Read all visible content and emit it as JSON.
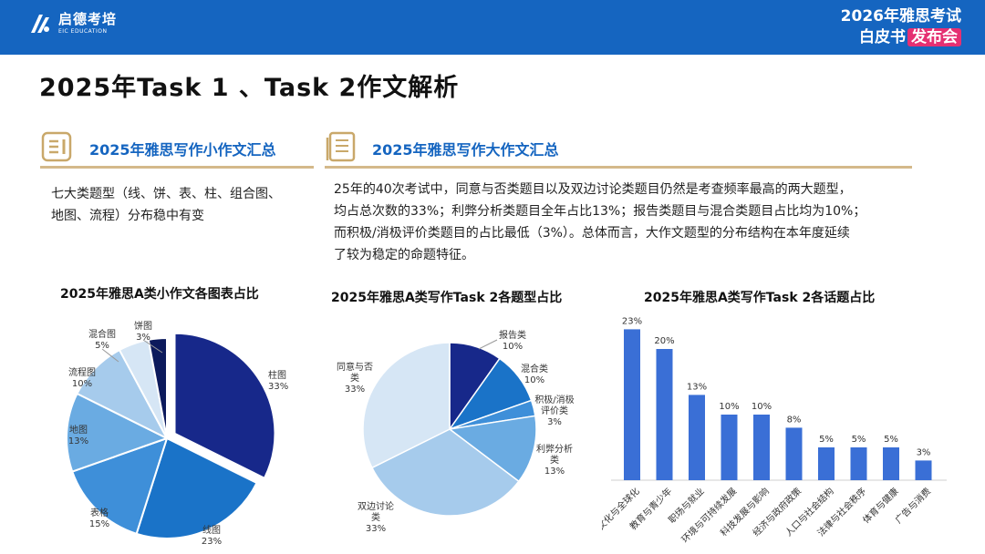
{
  "header": {
    "logo_cn": "启德考培",
    "logo_en": "EIC EDUCATION",
    "brand_line1": "2026年雅思考试",
    "brand_line2a": "白皮书",
    "brand_line2b": "发布会"
  },
  "page_title": "2025年Task 1 、Task 2作文解析",
  "left_section": {
    "title": "2025年雅思写作小作文汇总",
    "body_line1": "七大类题型（线、饼、表、柱、组合图、",
    "body_line2": "地图、流程）分布稳中有变"
  },
  "right_section": {
    "title": "2025年雅思写作大作文汇总",
    "body_lines": [
      "25年的40次考试中，同意与否类题目以及双边讨论类题目仍然是考查频率最高的两大题型，",
      "均占总次数的33%；利弊分析类题目全年占比13%；报告类题目与混合类题目占比均为10%；",
      "而积极/消极评价类题目的占比最低（3%）。总体而言，大作文题型的分布结构在本年度延续",
      "了较为稳定的命题特征。"
    ]
  },
  "chart_data": [
    {
      "type": "pie",
      "title": "2025年雅思A类小作文各图表占比",
      "slices": [
        {
          "label": "柱图",
          "value": 33,
          "pct": "33%",
          "color": "#17288a",
          "exploded": true
        },
        {
          "label": "线图",
          "value": 23,
          "pct": "23%",
          "color": "#1a73c8"
        },
        {
          "label": "表格",
          "value": 15,
          "pct": "15%",
          "color": "#3e8fd9"
        },
        {
          "label": "地图",
          "value": 13,
          "pct": "13%",
          "color": "#6aabe2"
        },
        {
          "label": "流程图",
          "value": 10,
          "pct": "10%",
          "color": "#a6cbec"
        },
        {
          "label": "混合图",
          "value": 5,
          "pct": "5%",
          "color": "#d6e6f5"
        },
        {
          "label": "饼图",
          "value": 3,
          "pct": "3%",
          "color": "#0c1a5c"
        }
      ]
    },
    {
      "type": "pie",
      "title": "2025年雅思A类写作Task 2各题型占比",
      "slices": [
        {
          "label": "报告类",
          "value": 10,
          "pct": "10%",
          "color": "#17288a"
        },
        {
          "label": "混合类",
          "value": 10,
          "pct": "10%",
          "color": "#1a73c8"
        },
        {
          "label": "积极/消极评价类",
          "value": 3,
          "pct": "3%",
          "color": "#3e8fd9"
        },
        {
          "label": "利弊分析类",
          "value": 13,
          "pct": "13%",
          "color": "#6aabe2"
        },
        {
          "label": "双边讨论类",
          "value": 33,
          "pct": "33%",
          "color": "#a6cbec"
        },
        {
          "label": "同意与否类",
          "value": 33,
          "pct": "33%",
          "color": "#d6e6f5"
        }
      ]
    },
    {
      "type": "bar",
      "title": "2025年雅思A类写作Task 2各话题占比",
      "categories": [
        "文化与全球化",
        "教育与青少年",
        "职场与就业",
        "环境与可持续发展",
        "科技发展与影响",
        "经济与政府政策",
        "人口与社会结构",
        "法律与社会秩序",
        "体育与健康",
        "广告与消费"
      ],
      "values": [
        23,
        20,
        13,
        10,
        10,
        8,
        5,
        5,
        5,
        3
      ],
      "value_labels": [
        "23%",
        "20%",
        "13%",
        "10%",
        "10%",
        "8%",
        "5%",
        "5%",
        "5%",
        "3%"
      ],
      "ylim": [
        0,
        25
      ],
      "bar_color": "#3a6fd6"
    }
  ]
}
